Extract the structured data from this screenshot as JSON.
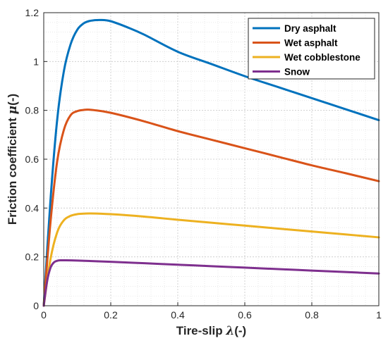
{
  "chart_data": {
    "type": "line",
    "xlabel_parts": [
      "Tire-slip ",
      "λ",
      "(-)"
    ],
    "ylabel_parts": [
      "Friction coefficient ",
      "μ",
      "(-)"
    ],
    "xlim": [
      0,
      1
    ],
    "ylim": [
      0,
      1.2
    ],
    "xticks": [
      0,
      0.2,
      0.4,
      0.6,
      0.8,
      1
    ],
    "yticks": [
      0,
      0.2,
      0.4,
      0.6,
      0.8,
      1,
      1.2
    ],
    "xtick_labels": [
      "0",
      "0.2",
      "0.4",
      "0.6",
      "0.8",
      "1"
    ],
    "ytick_labels": [
      "0",
      "0.2",
      "0.4",
      "0.6",
      "0.8",
      "1",
      "1.2"
    ],
    "grid": true,
    "minor_grid": true,
    "legend_position": "top-right",
    "series": [
      {
        "name": "Dry asphalt",
        "color": "#0072BD",
        "x": [
          0,
          0.02,
          0.04,
          0.06,
          0.08,
          0.1,
          0.12,
          0.14,
          0.17,
          0.2,
          0.25,
          0.3,
          0.4,
          0.5,
          0.6,
          0.7,
          0.8,
          0.9,
          1.0
        ],
        "y": [
          0,
          0.43,
          0.76,
          0.96,
          1.07,
          1.13,
          1.157,
          1.167,
          1.17,
          1.165,
          1.14,
          1.11,
          1.04,
          0.99,
          0.94,
          0.895,
          0.85,
          0.805,
          0.76
        ]
      },
      {
        "name": "Wet asphalt",
        "color": "#D95319",
        "x": [
          0,
          0.02,
          0.04,
          0.06,
          0.08,
          0.1,
          0.12,
          0.13,
          0.15,
          0.2,
          0.3,
          0.4,
          0.5,
          0.6,
          0.7,
          0.8,
          0.9,
          1.0
        ],
        "y": [
          0,
          0.34,
          0.59,
          0.72,
          0.78,
          0.797,
          0.802,
          0.803,
          0.801,
          0.79,
          0.755,
          0.715,
          0.68,
          0.645,
          0.61,
          0.575,
          0.543,
          0.51
        ]
      },
      {
        "name": "Wet cobblestone",
        "color": "#EDB120",
        "x": [
          0,
          0.02,
          0.04,
          0.06,
          0.08,
          0.1,
          0.12,
          0.14,
          0.2,
          0.3,
          0.4,
          0.5,
          0.6,
          0.7,
          0.8,
          0.9,
          1.0
        ],
        "y": [
          0,
          0.19,
          0.3,
          0.35,
          0.368,
          0.375,
          0.377,
          0.378,
          0.375,
          0.365,
          0.352,
          0.34,
          0.328,
          0.316,
          0.304,
          0.292,
          0.28
        ]
      },
      {
        "name": "Snow",
        "color": "#7E2F8E",
        "x": [
          0,
          0.01,
          0.02,
          0.03,
          0.04,
          0.05,
          0.06,
          0.1,
          0.2,
          0.3,
          0.4,
          0.5,
          0.6,
          0.7,
          0.8,
          0.9,
          1.0
        ],
        "y": [
          0,
          0.1,
          0.155,
          0.177,
          0.184,
          0.186,
          0.186,
          0.185,
          0.18,
          0.174,
          0.168,
          0.162,
          0.156,
          0.15,
          0.144,
          0.138,
          0.132
        ]
      }
    ]
  }
}
